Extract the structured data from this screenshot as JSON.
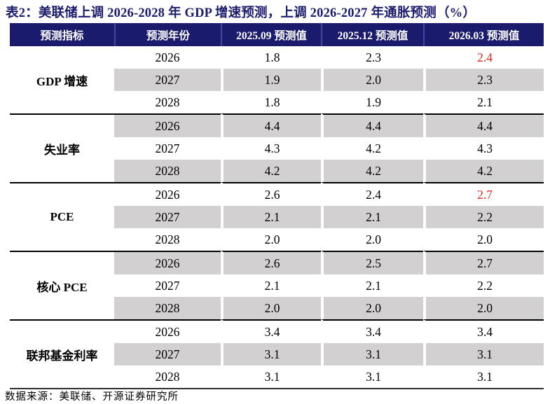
{
  "title": "表2：美联储上调 2026-2028 年 GDP 增速预测，上调 2026-2027 年通胀预测（%）",
  "footer": "数据来源：美联储、开源证券研究所",
  "colors": {
    "header_bg": "#1b1b6e",
    "header_separator": "#4646a0",
    "title_color": "#1b1b6e",
    "stripe": "#d2d0d0",
    "highlight_red": "#e5261f",
    "section_line": "#000000",
    "bottom_border": "#2f2f2f"
  },
  "table": {
    "columns": [
      "预测指标",
      "预测年份",
      "2025.09 预测值",
      "2025.12 预测值",
      "2026.03 预测值"
    ],
    "sections": [
      {
        "indicator": "GDP 增速",
        "rows": [
          {
            "year": "2026",
            "values": [
              "1.8",
              "2.3",
              "2.4"
            ],
            "highlight": [
              2
            ]
          },
          {
            "year": "2027",
            "values": [
              "1.9",
              "2.0",
              "2.3"
            ],
            "highlight": []
          },
          {
            "year": "2028",
            "values": [
              "1.8",
              "1.9",
              "2.1"
            ],
            "highlight": []
          }
        ]
      },
      {
        "indicator": "失业率",
        "rows": [
          {
            "year": "2026",
            "values": [
              "4.4",
              "4.4",
              "4.4"
            ],
            "highlight": []
          },
          {
            "year": "2027",
            "values": [
              "4.3",
              "4.2",
              "4.3"
            ],
            "highlight": []
          },
          {
            "year": "2028",
            "values": [
              "4.2",
              "4.2",
              "4.2"
            ],
            "highlight": []
          }
        ]
      },
      {
        "indicator": "PCE",
        "rows": [
          {
            "year": "2026",
            "values": [
              "2.6",
              "2.4",
              "2.7"
            ],
            "highlight": [
              2
            ]
          },
          {
            "year": "2027",
            "values": [
              "2.1",
              "2.1",
              "2.2"
            ],
            "highlight": []
          },
          {
            "year": "2028",
            "values": [
              "2.0",
              "2.0",
              "2.0"
            ],
            "highlight": []
          }
        ]
      },
      {
        "indicator": "核心 PCE",
        "rows": [
          {
            "year": "2026",
            "values": [
              "2.6",
              "2.5",
              "2.7"
            ],
            "highlight": []
          },
          {
            "year": "2027",
            "values": [
              "2.1",
              "2.1",
              "2.2"
            ],
            "highlight": []
          },
          {
            "year": "2028",
            "values": [
              "2.0",
              "2.0",
              "2.0"
            ],
            "highlight": []
          }
        ]
      },
      {
        "indicator": "联邦基金利率",
        "rows": [
          {
            "year": "2026",
            "values": [
              "3.4",
              "3.4",
              "3.4"
            ],
            "highlight": []
          },
          {
            "year": "2027",
            "values": [
              "3.1",
              "3.1",
              "3.1"
            ],
            "highlight": []
          },
          {
            "year": "2028",
            "values": [
              "3.1",
              "3.1",
              "3.1"
            ],
            "highlight": []
          }
        ]
      }
    ]
  }
}
